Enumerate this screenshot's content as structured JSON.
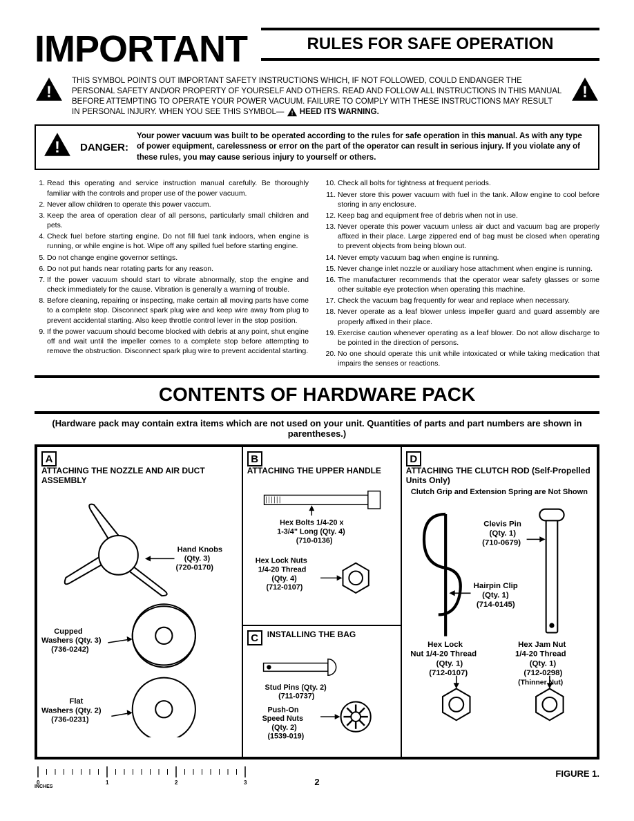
{
  "header": {
    "important": "IMPORTANT",
    "rules_title": "RULES FOR SAFE OPERATION"
  },
  "intro": {
    "text": "THIS SYMBOL POINTS OUT IMPORTANT SAFETY INSTRUCTIONS WHICH, IF NOT FOLLOWED, COULD ENDANGER THE PERSONAL SAFETY AND/OR PROPERTY OF YOURSELF AND OTHERS. READ AND FOLLOW ALL INSTRUCTIONS IN THIS MANUAL BEFORE ATTEMPTING TO OPERATE YOUR POWER VACUUM. FAILURE TO COMPLY WITH THESE INSTRUCTIONS MAY RESULT IN PERSONAL INJURY. WHEN YOU SEE THIS SYMBOL—",
    "heed": "HEED ITS WARNING."
  },
  "danger": {
    "label": "DANGER:",
    "text": "Your power vacuum was built to be operated according to the rules for safe operation in this manual. As with any type of power equipment, carelessness or error on the part of the operator can result in serious injury. If you violate any of these rules, you may cause serious injury to yourself or others."
  },
  "rules_left": [
    "Read this operating and service instruction manual carefully. Be thoroughly familiar with the controls and proper use of the power vacuum.",
    "Never allow children to operate this power vaccum.",
    "Keep the area of operation clear of all persons, particularly small children and pets.",
    "Check fuel before starting engine. Do not fill fuel tank indoors, when engine is running, or while engine is hot. Wipe off any spilled fuel before starting engine.",
    "Do not change engine governor settings.",
    "Do not put hands near rotating parts for any reason.",
    "If the power vacuum should start to vibrate abnormally, stop the engine and check immediately for the cause. Vibration is generally a warning of trouble.",
    "Before cleaning, repairing or inspecting, make certain all moving parts have come to a complete stop. Disconnect spark plug wire and keep wire away from plug to prevent accidental starting. Also keep throttle control lever in the stop position.",
    "If the power vacuum should become blocked with debris at any point, shut engine off and wait until the impeller comes to a complete stop before attempting to remove the obstruction. Disconnect spark plug wire to prevent accidental starting."
  ],
  "rules_right": [
    "Check all bolts for tightness at frequent periods.",
    "Never store this power vacuum with fuel in the tank. Allow engine to cool before storing in any enclosure.",
    "Keep bag and equipment free of debris when not in use.",
    "Never operate this power vacuum unless air duct and vacuum bag are properly affixed in their place. Large zippered end of bag must be closed when operating to prevent objects from being blown out.",
    "Never empty vacuum bag when engine is running.",
    "Never change inlet nozzle or auxiliary hose attachment when engine is running.",
    "The manufacturer recommends that the operator wear safety glasses or some other suitable eye protection when operating this machine.",
    "Check the vacuum bag frequently for wear and replace when necessary.",
    "Never operate as a leaf blower unless impeller guard and guard assembly are properly affixed in their place.",
    "Exercise caution whenever operating as a leaf blower. Do not allow discharge to be pointed in the direction of persons.",
    "No one should operate this unit while intoxicated or while taking medication that impairs the senses or reactions."
  ],
  "contents": {
    "title": "CONTENTS OF HARDWARE PACK",
    "subtitle": "(Hardware pack may contain extra items which are not used on your unit. Quantities of parts and part numbers are shown in parentheses.)"
  },
  "cells": {
    "a": {
      "letter": "A",
      "title": "ATTACHING THE NOZZLE AND AIR DUCT ASSEMBLY"
    },
    "b": {
      "letter": "B",
      "title": "ATTACHING THE UPPER HANDLE"
    },
    "c": {
      "letter": "C",
      "title": "INSTALLING THE BAG"
    },
    "d": {
      "letter": "D",
      "title": "ATTACHING THE CLUTCH ROD (Self-Propelled Units Only)"
    }
  },
  "parts": {
    "hand_knobs": "Hand Knobs\n(Qty. 3)\n(720-0170)",
    "cupped_washers": "Cupped\nWashers (Qty. 3)\n(736-0242)",
    "flat_washers": "Flat\nWashers (Qty. 2)\n(736-0231)",
    "hex_bolts": "Hex Bolts 1/4-20 x\n1-3/4\" Long (Qty. 4)\n(710-0136)",
    "hex_lock_nuts_b": "Hex Lock Nuts\n1/4-20 Thread\n(Qty. 4)\n(712-0107)",
    "stud_pins": "Stud Pins (Qty. 2)\n(711-0737)",
    "speed_nuts": "Push-On\nSpeed Nuts\n(Qty. 2)\n(1539-019)",
    "clutch_note": "Clutch Grip and Extension\nSpring are Not Shown",
    "clevis_pin": "Clevis Pin\n(Qty. 1)\n(710-0679)",
    "hairpin_clip": "Hairpin Clip\n(Qty. 1)\n(714-0145)",
    "hex_lock_d": "Hex Lock\nNut 1/4-20 Thread\n(Qty. 1)\n(712-0107)",
    "hex_jam": "Hex Jam Nut\n1/4-20 Thread\n(Qty. 1)\n(712-0298)\n(Thinner Nut)"
  },
  "footer": {
    "figure": "FIGURE 1.",
    "page": "2",
    "inches": "INCHES",
    "ruler_marks": [
      "0",
      "1",
      "2",
      "3"
    ]
  },
  "colors": {
    "ink": "#000000",
    "bg": "#ffffff",
    "watermark": "#c8ddf0"
  }
}
